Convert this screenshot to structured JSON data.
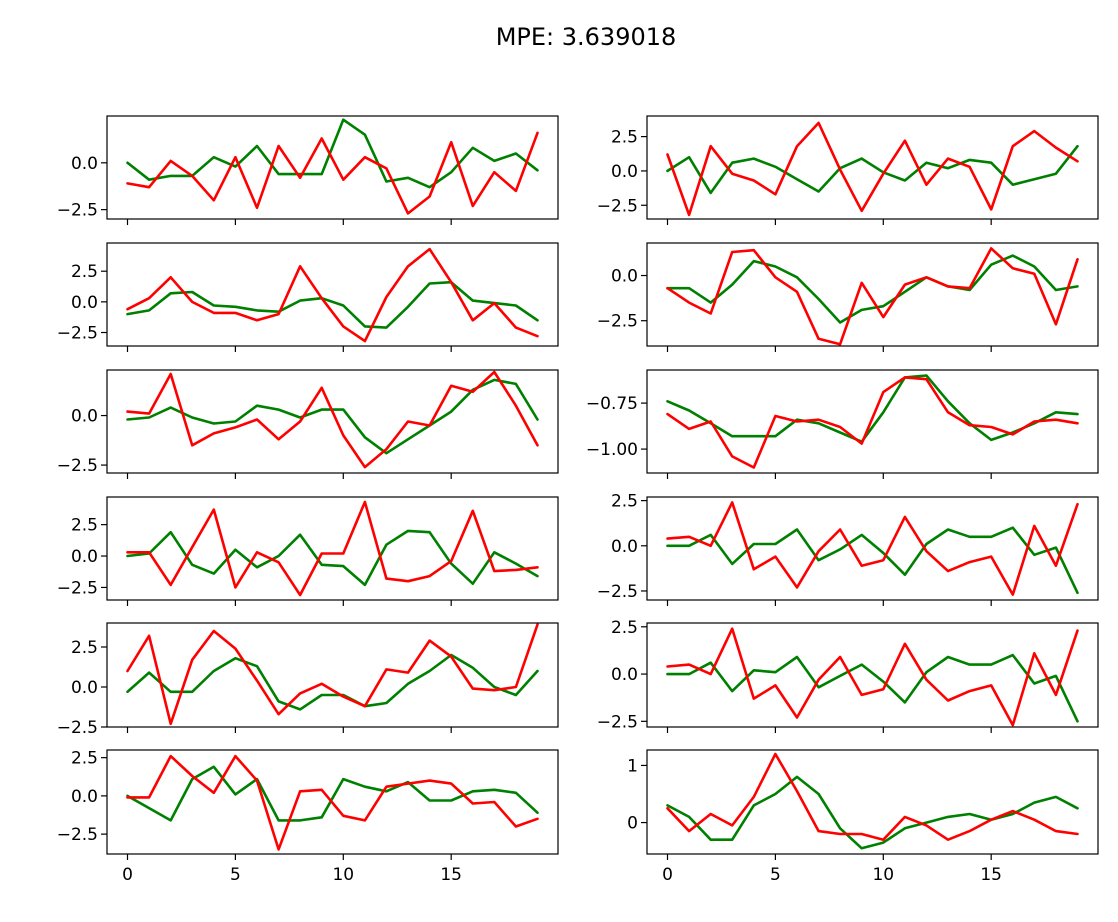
{
  "figure": {
    "title": "MPE: 3.639018"
  },
  "colors": {
    "green": "#008000",
    "red": "#ff0000"
  },
  "chart_data": [
    {
      "type": "line",
      "x": [
        0,
        1,
        2,
        3,
        4,
        5,
        6,
        7,
        8,
        9,
        10,
        11,
        12,
        13,
        14,
        15,
        16,
        17,
        18,
        19
      ],
      "xlim": [
        -0.95,
        19.95
      ],
      "ylim": [
        -3.0,
        2.5
      ],
      "yticks": [
        0.0,
        -2.5
      ],
      "ytick_labels": [
        "0.0",
        "−2.5"
      ],
      "xticks": [
        0,
        5,
        10,
        15
      ],
      "xtick_labels": [],
      "series": [
        {
          "color": "#008000",
          "values": [
            0.0,
            -0.9,
            -0.7,
            -0.7,
            0.3,
            -0.2,
            0.9,
            -0.6,
            -0.6,
            -0.6,
            2.3,
            1.5,
            -1.0,
            -0.8,
            -1.3,
            -0.5,
            0.8,
            0.1,
            0.5,
            -0.4
          ]
        },
        {
          "color": "#ff0000",
          "values": [
            -1.1,
            -1.3,
            0.1,
            -0.7,
            -2.0,
            0.3,
            -2.4,
            0.9,
            -0.8,
            1.3,
            -0.9,
            0.3,
            -0.3,
            -2.7,
            -1.8,
            1.1,
            -2.3,
            -0.5,
            -1.5,
            1.6
          ]
        }
      ]
    },
    {
      "type": "line",
      "x": [
        0,
        1,
        2,
        3,
        4,
        5,
        6,
        7,
        8,
        9,
        10,
        11,
        12,
        13,
        14,
        15,
        16,
        17,
        18,
        19
      ],
      "xlim": [
        -0.95,
        19.95
      ],
      "ylim": [
        -3.5,
        4.0
      ],
      "yticks": [
        2.5,
        0.0,
        -2.5
      ],
      "ytick_labels": [
        "2.5",
        "0.0",
        "−2.5"
      ],
      "xticks": [
        0,
        5,
        10,
        15
      ],
      "xtick_labels": [],
      "series": [
        {
          "color": "#008000",
          "values": [
            0.0,
            1.0,
            -1.6,
            0.6,
            0.9,
            0.3,
            -0.6,
            -1.5,
            0.2,
            0.9,
            -0.1,
            -0.7,
            0.6,
            0.2,
            0.8,
            0.6,
            -1.0,
            -0.6,
            -0.2,
            1.8
          ]
        },
        {
          "color": "#ff0000",
          "values": [
            1.2,
            -3.2,
            1.8,
            -0.2,
            -0.7,
            -1.7,
            1.8,
            3.5,
            0.1,
            -2.9,
            -0.2,
            2.2,
            -1.0,
            0.9,
            0.3,
            -2.8,
            1.8,
            2.9,
            1.7,
            0.7
          ]
        }
      ]
    },
    {
      "type": "line",
      "x": [
        0,
        1,
        2,
        3,
        4,
        5,
        6,
        7,
        8,
        9,
        10,
        11,
        12,
        13,
        14,
        15,
        16,
        17,
        18,
        19
      ],
      "xlim": [
        -0.95,
        19.95
      ],
      "ylim": [
        -3.6,
        4.8
      ],
      "yticks": [
        2.5,
        0.0,
        -2.5
      ],
      "ytick_labels": [
        "2.5",
        "0.0",
        "−2.5"
      ],
      "xticks": [
        0,
        5,
        10,
        15
      ],
      "xtick_labels": [],
      "series": [
        {
          "color": "#008000",
          "values": [
            -1.0,
            -0.7,
            0.7,
            0.8,
            -0.3,
            -0.4,
            -0.7,
            -0.8,
            0.1,
            0.3,
            -0.3,
            -2.0,
            -2.1,
            -0.4,
            1.5,
            1.6,
            0.1,
            -0.1,
            -0.3,
            -1.5
          ]
        },
        {
          "color": "#ff0000",
          "values": [
            -0.6,
            0.3,
            2.0,
            0.0,
            -0.9,
            -0.9,
            -1.5,
            -1.0,
            2.9,
            0.3,
            -2.0,
            -3.2,
            0.4,
            2.9,
            4.3,
            1.6,
            -1.5,
            -0.1,
            -2.1,
            -2.8
          ]
        }
      ]
    },
    {
      "type": "line",
      "x": [
        0,
        1,
        2,
        3,
        4,
        5,
        6,
        7,
        8,
        9,
        10,
        11,
        12,
        13,
        14,
        15,
        16,
        17,
        18,
        19
      ],
      "xlim": [
        -0.95,
        19.95
      ],
      "ylim": [
        -3.9,
        1.8
      ],
      "yticks": [
        0.0,
        -2.5
      ],
      "ytick_labels": [
        "0.0",
        "−2.5"
      ],
      "xticks": [
        0,
        5,
        10,
        15
      ],
      "xtick_labels": [],
      "series": [
        {
          "color": "#008000",
          "values": [
            -0.7,
            -0.7,
            -1.5,
            -0.5,
            0.8,
            0.5,
            -0.1,
            -1.3,
            -2.6,
            -1.9,
            -1.7,
            -0.9,
            -0.1,
            -0.6,
            -0.8,
            0.6,
            1.1,
            0.5,
            -0.8,
            -0.6
          ]
        },
        {
          "color": "#ff0000",
          "values": [
            -0.7,
            -1.5,
            -2.1,
            1.3,
            1.4,
            -0.1,
            -0.9,
            -3.5,
            -3.8,
            -0.4,
            -2.3,
            -0.5,
            -0.1,
            -0.6,
            -0.7,
            1.5,
            0.4,
            0.1,
            -2.7,
            0.9
          ]
        }
      ]
    },
    {
      "type": "line",
      "x": [
        0,
        1,
        2,
        3,
        4,
        5,
        6,
        7,
        8,
        9,
        10,
        11,
        12,
        13,
        14,
        15,
        16,
        17,
        18,
        19
      ],
      "xlim": [
        -0.95,
        19.95
      ],
      "ylim": [
        -2.9,
        2.3
      ],
      "yticks": [
        0.0,
        -2.5
      ],
      "ytick_labels": [
        "0.0",
        "−2.5"
      ],
      "xticks": [
        0,
        5,
        10,
        15
      ],
      "xtick_labels": [],
      "series": [
        {
          "color": "#008000",
          "values": [
            -0.2,
            -0.1,
            0.4,
            -0.1,
            -0.4,
            -0.3,
            0.5,
            0.3,
            -0.1,
            0.3,
            0.3,
            -1.1,
            -1.9,
            -1.2,
            -0.5,
            0.2,
            1.3,
            1.8,
            1.6,
            -0.2
          ]
        },
        {
          "color": "#ff0000",
          "values": [
            0.2,
            0.1,
            2.1,
            -1.5,
            -0.9,
            -0.6,
            -0.2,
            -1.2,
            -0.3,
            1.4,
            -1.0,
            -2.6,
            -1.7,
            -0.3,
            -0.5,
            1.5,
            1.2,
            2.2,
            0.5,
            -1.5
          ]
        }
      ]
    },
    {
      "type": "line",
      "x": [
        0,
        1,
        2,
        3,
        4,
        5,
        6,
        7,
        8,
        9,
        10,
        11,
        12,
        13,
        14,
        15,
        16,
        17,
        18,
        19
      ],
      "xlim": [
        -0.95,
        19.95
      ],
      "ylim": [
        -1.13,
        -0.57
      ],
      "yticks": [
        -0.75,
        -1.0
      ],
      "ytick_labels": [
        "−0.75",
        "−1.00"
      ],
      "xticks": [
        0,
        5,
        10,
        15
      ],
      "xtick_labels": [],
      "series": [
        {
          "color": "#008000",
          "values": [
            -0.74,
            -0.79,
            -0.86,
            -0.93,
            -0.93,
            -0.93,
            -0.84,
            -0.86,
            -0.91,
            -0.96,
            -0.8,
            -0.61,
            -0.6,
            -0.74,
            -0.86,
            -0.95,
            -0.91,
            -0.86,
            -0.8,
            -0.81
          ]
        },
        {
          "color": "#ff0000",
          "values": [
            -0.81,
            -0.89,
            -0.85,
            -1.04,
            -1.1,
            -0.82,
            -0.85,
            -0.84,
            -0.88,
            -0.97,
            -0.69,
            -0.61,
            -0.62,
            -0.8,
            -0.87,
            -0.88,
            -0.92,
            -0.85,
            -0.84,
            -0.86
          ]
        }
      ]
    },
    {
      "type": "line",
      "x": [
        0,
        1,
        2,
        3,
        4,
        5,
        6,
        7,
        8,
        9,
        10,
        11,
        12,
        13,
        14,
        15,
        16,
        17,
        18,
        19
      ],
      "xlim": [
        -0.95,
        19.95
      ],
      "ylim": [
        -3.5,
        4.7
      ],
      "yticks": [
        2.5,
        0.0,
        -2.5
      ],
      "ytick_labels": [
        "2.5",
        "0.0",
        "−2.5"
      ],
      "xticks": [
        0,
        5,
        10,
        15
      ],
      "xtick_labels": [],
      "series": [
        {
          "color": "#008000",
          "values": [
            0.0,
            0.2,
            1.9,
            -0.7,
            -1.4,
            0.5,
            -0.9,
            0.0,
            1.7,
            -0.7,
            -0.8,
            -2.3,
            0.9,
            2.0,
            1.9,
            -0.6,
            -2.2,
            0.3,
            -0.6,
            -1.6
          ]
        },
        {
          "color": "#ff0000",
          "values": [
            0.3,
            0.3,
            -2.3,
            0.7,
            3.7,
            -2.5,
            0.3,
            -0.5,
            -3.1,
            0.2,
            0.2,
            4.3,
            -1.8,
            -2.0,
            -1.6,
            -0.4,
            3.6,
            -1.2,
            -1.1,
            -0.9
          ]
        }
      ]
    },
    {
      "type": "line",
      "x": [
        0,
        1,
        2,
        3,
        4,
        5,
        6,
        7,
        8,
        9,
        10,
        11,
        12,
        13,
        14,
        15,
        16,
        17,
        18,
        19
      ],
      "xlim": [
        -0.95,
        19.95
      ],
      "ylim": [
        -3.0,
        2.7
      ],
      "yticks": [
        2.5,
        0.0,
        -2.5
      ],
      "ytick_labels": [
        "2.5",
        "0.0",
        "−2.5"
      ],
      "xticks": [
        0,
        5,
        10,
        15
      ],
      "xtick_labels": [],
      "series": [
        {
          "color": "#008000",
          "values": [
            0.0,
            0.0,
            0.6,
            -1.0,
            0.1,
            0.1,
            0.9,
            -0.8,
            -0.2,
            0.6,
            -0.4,
            -1.6,
            0.1,
            0.9,
            0.5,
            0.5,
            1.0,
            -0.5,
            -0.1,
            -2.6
          ]
        },
        {
          "color": "#ff0000",
          "values": [
            0.4,
            0.5,
            0.0,
            2.4,
            -1.3,
            -0.6,
            -2.3,
            -0.3,
            0.9,
            -1.1,
            -0.8,
            1.6,
            -0.3,
            -1.4,
            -0.9,
            -0.6,
            -2.7,
            1.1,
            -1.1,
            2.3
          ]
        }
      ]
    },
    {
      "type": "line",
      "x": [
        0,
        1,
        2,
        3,
        4,
        5,
        6,
        7,
        8,
        9,
        10,
        11,
        12,
        13,
        14,
        15,
        16,
        17,
        18,
        19
      ],
      "xlim": [
        -0.95,
        19.95
      ],
      "ylim": [
        -2.5,
        4.0
      ],
      "yticks": [
        2.5,
        0.0,
        -2.5
      ],
      "ytick_labels": [
        "2.5",
        "0.0",
        "−2.5"
      ],
      "xticks": [
        0,
        5,
        10,
        15
      ],
      "xtick_labels": [],
      "series": [
        {
          "color": "#008000",
          "values": [
            -0.3,
            0.9,
            -0.3,
            -0.3,
            1.0,
            1.8,
            1.3,
            -0.9,
            -1.4,
            -0.5,
            -0.5,
            -1.2,
            -1.0,
            0.2,
            1.0,
            2.0,
            1.2,
            0.0,
            -0.5,
            1.0
          ]
        },
        {
          "color": "#ff0000",
          "values": [
            1.0,
            3.2,
            -2.3,
            1.7,
            3.5,
            2.4,
            0.4,
            -1.7,
            -0.4,
            0.2,
            -0.6,
            -1.2,
            1.1,
            0.9,
            2.9,
            1.9,
            -0.1,
            -0.2,
            0.0,
            3.9
          ]
        }
      ]
    },
    {
      "type": "line",
      "x": [
        0,
        1,
        2,
        3,
        4,
        5,
        6,
        7,
        8,
        9,
        10,
        11,
        12,
        13,
        14,
        15,
        16,
        17,
        18,
        19
      ],
      "xlim": [
        -0.95,
        19.95
      ],
      "ylim": [
        -2.8,
        2.7
      ],
      "yticks": [
        2.5,
        0.0,
        -2.5
      ],
      "ytick_labels": [
        "2.5",
        "0.0",
        "−2.5"
      ],
      "xticks": [
        0,
        5,
        10,
        15
      ],
      "xtick_labels": [],
      "series": [
        {
          "color": "#008000",
          "values": [
            0.0,
            0.0,
            0.6,
            -0.9,
            0.2,
            0.1,
            0.9,
            -0.7,
            -0.1,
            0.5,
            -0.4,
            -1.5,
            0.1,
            0.9,
            0.5,
            0.5,
            1.0,
            -0.5,
            -0.1,
            -2.5
          ]
        },
        {
          "color": "#ff0000",
          "values": [
            0.4,
            0.5,
            0.0,
            2.4,
            -1.3,
            -0.6,
            -2.3,
            -0.3,
            0.9,
            -1.1,
            -0.8,
            1.6,
            -0.3,
            -1.4,
            -0.9,
            -0.6,
            -2.7,
            1.1,
            -1.1,
            2.3
          ]
        }
      ]
    },
    {
      "type": "line",
      "x": [
        0,
        1,
        2,
        3,
        4,
        5,
        6,
        7,
        8,
        9,
        10,
        11,
        12,
        13,
        14,
        15,
        16,
        17,
        18,
        19
      ],
      "xlim": [
        -0.95,
        19.95
      ],
      "ylim": [
        -3.8,
        3.0
      ],
      "yticks": [
        2.5,
        0.0,
        -2.5
      ],
      "ytick_labels": [
        "2.5",
        "0.0",
        "−2.5"
      ],
      "xticks": [
        0,
        5,
        10,
        15
      ],
      "xtick_labels": [
        "0",
        "5",
        "10",
        "15"
      ],
      "series": [
        {
          "color": "#008000",
          "values": [
            0.0,
            -0.8,
            -1.6,
            1.1,
            1.9,
            0.1,
            1.1,
            -1.6,
            -1.6,
            -1.4,
            1.1,
            0.6,
            0.3,
            0.9,
            -0.3,
            -0.3,
            0.3,
            0.4,
            0.2,
            -1.1
          ]
        },
        {
          "color": "#ff0000",
          "values": [
            -0.1,
            -0.1,
            2.6,
            1.3,
            0.2,
            2.6,
            1.0,
            -3.5,
            0.3,
            0.4,
            -1.3,
            -1.6,
            0.6,
            0.8,
            1.0,
            0.8,
            -0.5,
            -0.4,
            -2.0,
            -1.5
          ]
        }
      ]
    },
    {
      "type": "line",
      "x": [
        0,
        1,
        2,
        3,
        4,
        5,
        6,
        7,
        8,
        9,
        10,
        11,
        12,
        13,
        14,
        15,
        16,
        17,
        18,
        19
      ],
      "xlim": [
        -0.95,
        19.95
      ],
      "ylim": [
        -0.55,
        1.27
      ],
      "yticks": [
        1.0,
        0.0
      ],
      "ytick_labels": [
        "1",
        "0"
      ],
      "xticks": [
        0,
        5,
        10,
        15
      ],
      "xtick_labels": [
        "0",
        "5",
        "10",
        "15"
      ],
      "series": [
        {
          "color": "#008000",
          "values": [
            0.3,
            0.1,
            -0.3,
            -0.3,
            0.3,
            0.5,
            0.8,
            0.5,
            -0.1,
            -0.45,
            -0.35,
            -0.1,
            0.0,
            0.1,
            0.15,
            0.05,
            0.15,
            0.35,
            0.45,
            0.25
          ]
        },
        {
          "color": "#ff0000",
          "values": [
            0.25,
            -0.15,
            0.15,
            -0.05,
            0.45,
            1.2,
            0.55,
            -0.15,
            -0.2,
            -0.2,
            -0.3,
            0.1,
            -0.05,
            -0.3,
            -0.15,
            0.05,
            0.2,
            0.05,
            -0.15,
            -0.2
          ]
        }
      ]
    }
  ]
}
